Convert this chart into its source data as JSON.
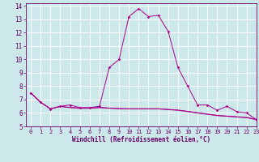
{
  "xlabel": "Windchill (Refroidissement éolien,°C)",
  "xlim": [
    -0.5,
    23
  ],
  "ylim": [
    5,
    14.2
  ],
  "yticks": [
    5,
    6,
    7,
    8,
    9,
    10,
    11,
    12,
    13,
    14
  ],
  "xticks": [
    0,
    1,
    2,
    3,
    4,
    5,
    6,
    7,
    8,
    9,
    10,
    11,
    12,
    13,
    14,
    15,
    16,
    17,
    18,
    19,
    20,
    21,
    22,
    23
  ],
  "bg_color": "#cce8ea",
  "grid_color": "#ffffff",
  "line_color": "#aa0088",
  "y_main": [
    7.5,
    6.8,
    6.3,
    6.5,
    6.6,
    6.4,
    6.4,
    6.5,
    9.4,
    10.0,
    13.2,
    13.8,
    13.2,
    13.3,
    12.1,
    9.4,
    8.0,
    6.6,
    6.6,
    6.2,
    6.5,
    6.1,
    6.0,
    5.5
  ],
  "y_flat1": [
    7.5,
    6.8,
    6.3,
    6.5,
    6.4,
    6.35,
    6.35,
    6.4,
    6.35,
    6.32,
    6.3,
    6.3,
    6.3,
    6.3,
    6.25,
    6.2,
    6.1,
    6.0,
    5.9,
    5.8,
    5.75,
    5.7,
    5.65,
    5.5
  ],
  "y_flat2": [
    7.5,
    6.8,
    6.32,
    6.48,
    6.42,
    6.37,
    6.37,
    6.42,
    6.37,
    6.33,
    6.32,
    6.32,
    6.32,
    6.32,
    6.27,
    6.22,
    6.12,
    6.02,
    5.92,
    5.82,
    5.77,
    5.72,
    5.67,
    5.52
  ],
  "font_color": "#660066",
  "tick_fontsize": 5.0,
  "xlabel_fontsize": 5.5
}
